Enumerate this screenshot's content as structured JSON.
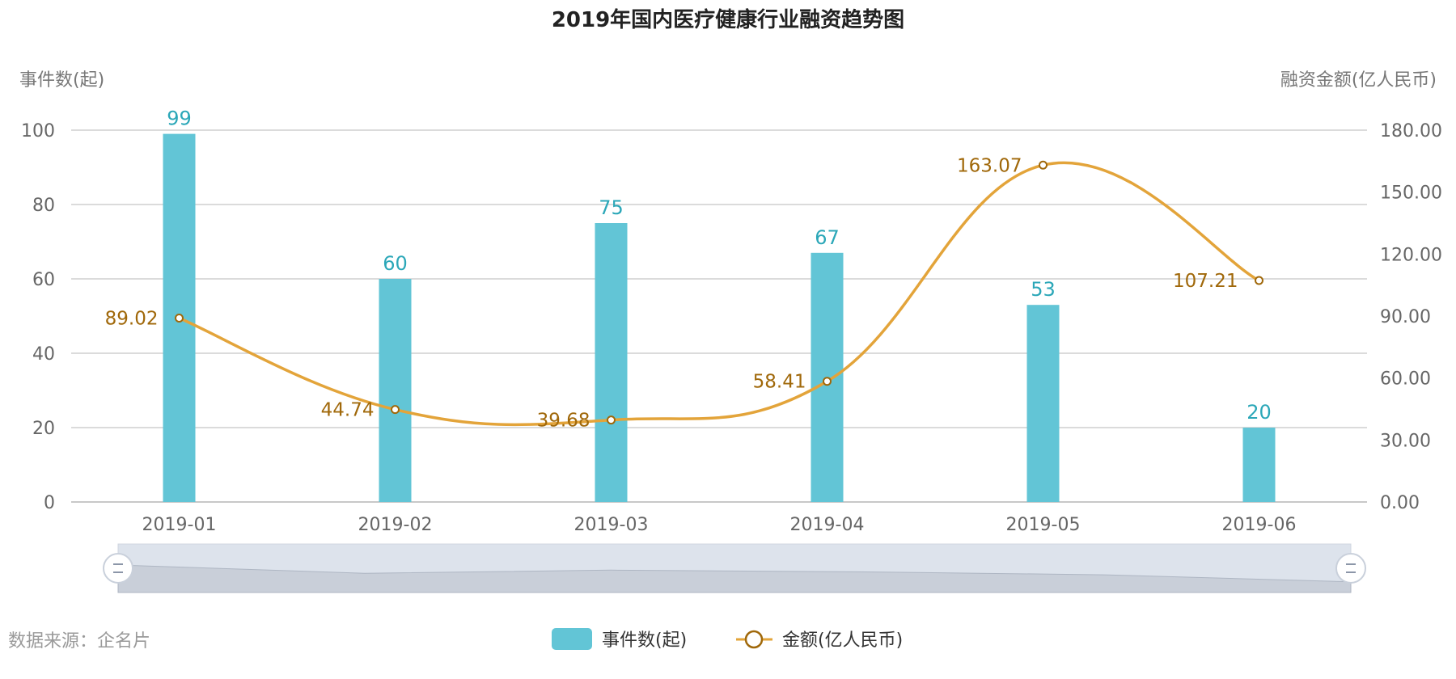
{
  "chart_data": {
    "type": "bar",
    "title": "2019年国内医疗健康行业融资趋势图",
    "categories": [
      "2019-01",
      "2019-02",
      "2019-03",
      "2019-04",
      "2019-05",
      "2019-06"
    ],
    "series": [
      {
        "name": "事件数(起)",
        "type": "bar",
        "axis": "left",
        "color": "#62c5d6",
        "values": [
          99,
          60,
          75,
          67,
          53,
          20
        ]
      },
      {
        "name": "金额(亿人民币)",
        "type": "line",
        "axis": "right",
        "color": "#e3a43a",
        "values": [
          89.02,
          44.74,
          39.68,
          58.41,
          163.07,
          107.21
        ]
      }
    ],
    "y_left": {
      "label": "事件数(起)",
      "range": [
        0,
        100
      ],
      "ticks": [
        "0",
        "20",
        "40",
        "60",
        "80",
        "100"
      ]
    },
    "y_right": {
      "label": "融资金额(亿人民币)",
      "range": [
        0,
        180
      ],
      "ticks": [
        "0.00",
        "30.00",
        "60.00",
        "90.00",
        "120.00",
        "150.00",
        "180.00"
      ]
    },
    "grid": true,
    "legend_position": "bottom-center",
    "data_zoom_slider": true
  },
  "footer": {
    "source": "数据来源：企名片"
  }
}
